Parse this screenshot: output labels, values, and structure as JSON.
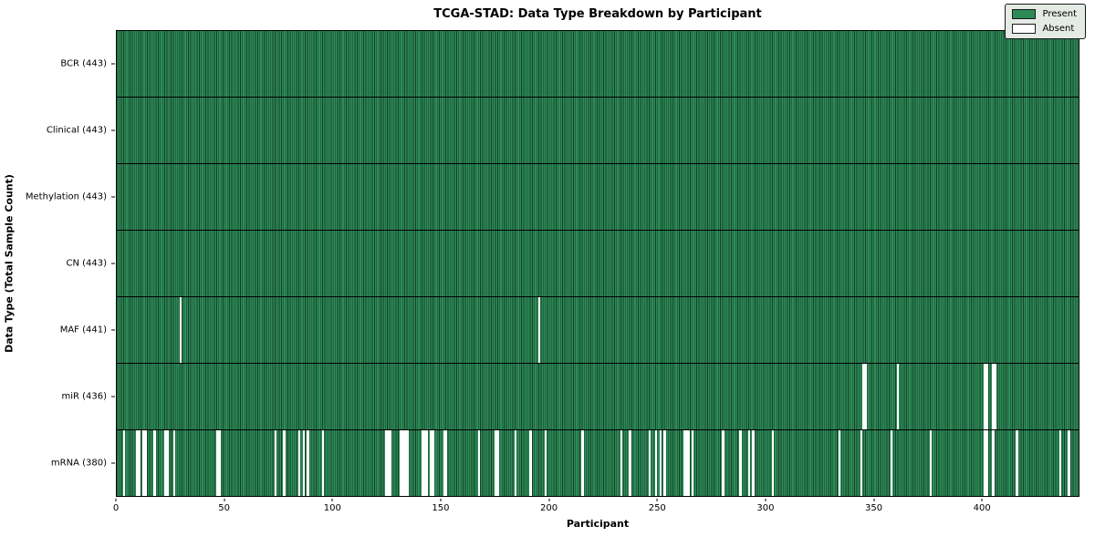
{
  "title": "TCGA-STAD: Data Type Breakdown by Participant",
  "chart_data": {
    "type": "heatmap",
    "title": "TCGA-STAD: Data Type Breakdown by Participant",
    "xlabel": "Participant",
    "ylabel": "Data Type (Total Sample Count)",
    "xlim": [
      0,
      445
    ],
    "x_ticks": [
      0,
      50,
      100,
      150,
      200,
      250,
      300,
      350,
      400
    ],
    "n_participants": 443,
    "grid": "row-dividers",
    "legend_position": "upper right",
    "legend": [
      {
        "label": "Present",
        "color": "#2e8b57"
      },
      {
        "label": "Absent",
        "color": "#ffffff"
      }
    ],
    "colors": {
      "present": "#2e8b57",
      "bar_edge": "#133f28",
      "absent": "#ffffff",
      "border": "#000000",
      "legend_bg": "#e4eae4"
    },
    "rows": [
      {
        "label": "BCR (443)",
        "name": "bcr",
        "total": 443,
        "absent": []
      },
      {
        "label": "Clinical (443)",
        "name": "clinical",
        "total": 443,
        "absent": []
      },
      {
        "label": "Methylation (443)",
        "name": "methylation",
        "total": 443,
        "absent": []
      },
      {
        "label": "CN (443)",
        "name": "cn",
        "total": 443,
        "absent": []
      },
      {
        "label": "MAF (441)",
        "name": "maf",
        "total": 441,
        "absent": [
          29,
          195
        ]
      },
      {
        "label": "miR (436)",
        "name": "mir",
        "total": 436,
        "absent": [
          345,
          346,
          361,
          401,
          402,
          405,
          406
        ]
      },
      {
        "label": "mRNA (380)",
        "name": "mrna",
        "total": 380,
        "absent": [
          3,
          9,
          10,
          12,
          13,
          17,
          22,
          23,
          26,
          46,
          47,
          73,
          77,
          84,
          86,
          88,
          95,
          124,
          125,
          126,
          131,
          132,
          133,
          134,
          141,
          142,
          143,
          145,
          146,
          151,
          152,
          167,
          175,
          176,
          184,
          191,
          198,
          215,
          233,
          237,
          246,
          249,
          251,
          253,
          262,
          263,
          264,
          266,
          280,
          288,
          292,
          294,
          303,
          334,
          344,
          358,
          376,
          401,
          402,
          405,
          416,
          436,
          440
        ]
      }
    ]
  }
}
